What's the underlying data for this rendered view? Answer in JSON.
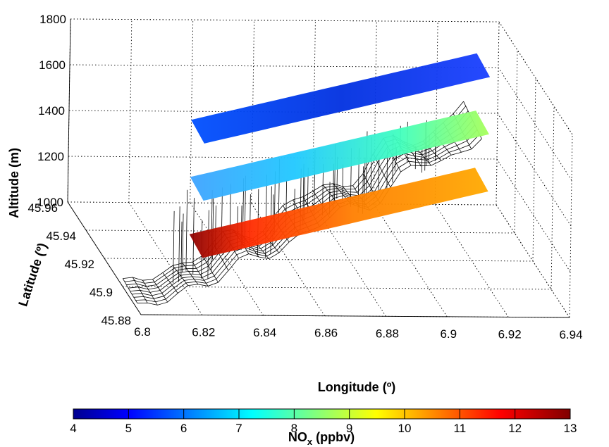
{
  "chart_data": {
    "type": "3d-surface",
    "title": "",
    "axes": {
      "x": {
        "label": "Longitude (º)",
        "range": [
          6.8,
          6.94
        ],
        "ticks": [
          "6.8",
          "6.82",
          "6.84",
          "6.86",
          "6.88",
          "6.9",
          "6.92",
          "6.94"
        ]
      },
      "y": {
        "label": "Latitude (º)",
        "range": [
          45.88,
          45.96
        ],
        "ticks": [
          "45.88",
          "45.9",
          "45.92",
          "45.94",
          "45.96"
        ]
      },
      "z": {
        "label": "Altitude (m)",
        "range": [
          1000,
          1800
        ],
        "ticks": [
          "1000",
          "1200",
          "1400",
          "1600",
          "1800"
        ]
      }
    },
    "grid": true,
    "terrain": "black wireframe mesh of the valley topography, rising from about 1000 m in the south-west to about 1450 m in the north-east",
    "layers": [
      {
        "name": "",
        "altitude_m": 1150,
        "nox_ppbv_range": [
          10,
          13
        ],
        "dominant_ppbv": 11,
        "colors": "red-orange"
      },
      {
        "name": "",
        "altitude_m": 1400,
        "nox_ppbv_range": [
          6,
          9
        ],
        "dominant_ppbv": 7,
        "colors": "cyan-green"
      },
      {
        "name": "",
        "altitude_m": 1650,
        "nox_ppbv_range": [
          4,
          12
        ],
        "dominant_ppbv": 5,
        "colors": "blue"
      }
    ],
    "colorbar": {
      "label_main": "NO",
      "label_sub": "x",
      "label_unit": " (ppbv)",
      "min": 4,
      "max": 13,
      "ticks": [
        "4",
        "5",
        "6",
        "7",
        "8",
        "9",
        "10",
        "11",
        "12",
        "13"
      ],
      "colormap": "jet"
    }
  }
}
